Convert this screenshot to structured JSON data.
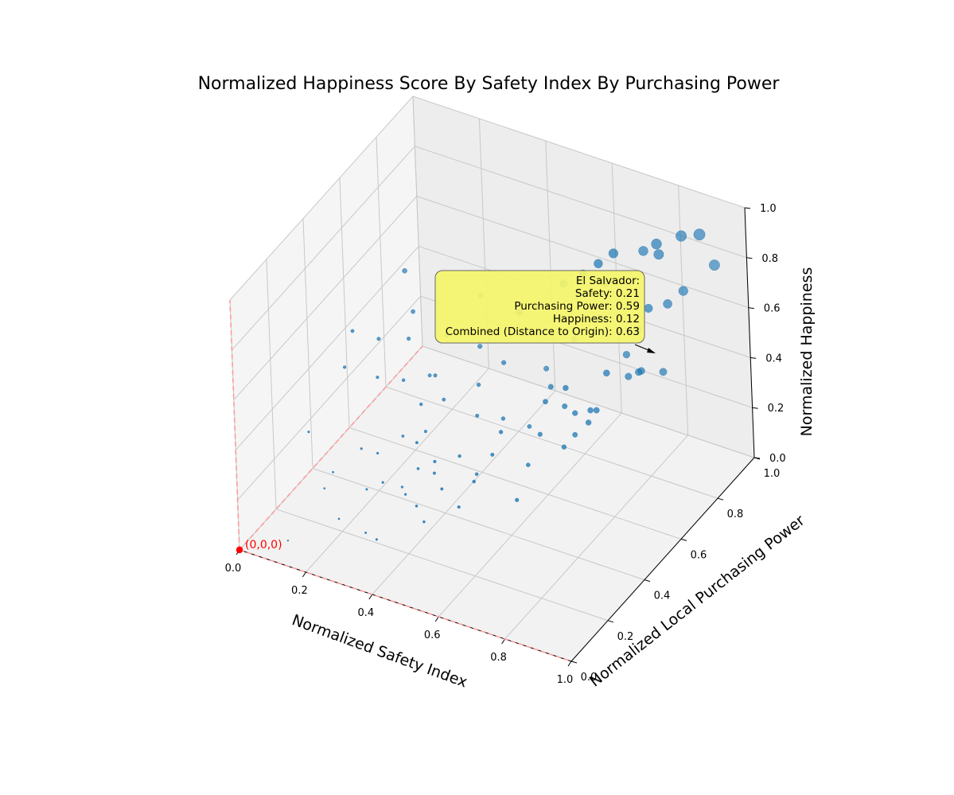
{
  "chart_data": {
    "type": "scatter",
    "title": "Normalized Happiness Score By Safety Index By Purchasing Power",
    "xlabel": "Normalized Safety Index",
    "ylabel": "Normalized Local Purchasing Power",
    "zlabel": "Normalized Happiness",
    "xlim": [
      0,
      1
    ],
    "ylim": [
      0,
      1
    ],
    "zlim": [
      0,
      1
    ],
    "x_ticks": [
      "0.0",
      "0.2",
      "0.4",
      "0.6",
      "0.8",
      "1.0"
    ],
    "y_ticks": [
      "0.0",
      "0.2",
      "0.4",
      "0.6",
      "0.8",
      "1.0"
    ],
    "z_ticks": [
      "0.0",
      "0.2",
      "0.4",
      "0.6",
      "0.8",
      "1.0"
    ],
    "grid": true,
    "point_color": "#1f77b4",
    "origin": {
      "label": "(0,0,0)",
      "color": "#ff0000"
    },
    "annotation": {
      "country": "El Salvador:",
      "lines": [
        "El Salvador:",
        "Safety: 0.21",
        "Purchasing Power: 0.59",
        "Happiness: 0.12",
        "Combined (Distance to Origin): 0.63"
      ],
      "point": {
        "x": 0.21,
        "y": 0.59,
        "z": 0.12
      },
      "box_color": "#f5f56a"
    },
    "points": [
      {
        "x": 0.94,
        "y": 0.86,
        "z": 0.98
      },
      {
        "x": 0.86,
        "y": 0.77,
        "z": 0.98
      },
      {
        "x": 0.89,
        "y": 0.85,
        "z": 0.96
      },
      {
        "x": 0.78,
        "y": 0.68,
        "z": 0.98
      },
      {
        "x": 0.86,
        "y": 0.78,
        "z": 0.93
      },
      {
        "x": 0.79,
        "y": 0.82,
        "z": 0.88
      },
      {
        "x": 0.75,
        "y": 0.65,
        "z": 0.95
      },
      {
        "x": 0.72,
        "y": 0.62,
        "z": 0.92
      },
      {
        "x": 0.93,
        "y": 0.95,
        "z": 0.78
      },
      {
        "x": 0.7,
        "y": 0.55,
        "z": 0.93
      },
      {
        "x": 0.75,
        "y": 0.68,
        "z": 0.85
      },
      {
        "x": 0.89,
        "y": 0.85,
        "z": 0.74
      },
      {
        "x": 0.84,
        "y": 0.75,
        "z": 0.73
      },
      {
        "x": 0.87,
        "y": 0.8,
        "z": 0.72
      },
      {
        "x": 0.62,
        "y": 0.45,
        "z": 0.86
      },
      {
        "x": 0.81,
        "y": 0.74,
        "z": 0.64
      },
      {
        "x": 0.84,
        "y": 0.7,
        "z": 0.52
      },
      {
        "x": 0.78,
        "y": 0.62,
        "z": 0.55
      },
      {
        "x": 0.75,
        "y": 0.78,
        "z": 0.48
      },
      {
        "x": 0.8,
        "y": 0.7,
        "z": 0.48
      },
      {
        "x": 0.82,
        "y": 0.72,
        "z": 0.49
      },
      {
        "x": 0.86,
        "y": 0.78,
        "z": 0.46
      },
      {
        "x": 0.78,
        "y": 0.56,
        "z": 0.45
      },
      {
        "x": 0.7,
        "y": 0.54,
        "z": 0.52
      },
      {
        "x": 0.66,
        "y": 0.5,
        "z": 0.48
      },
      {
        "x": 0.72,
        "y": 0.55,
        "z": 0.42
      },
      {
        "x": 0.75,
        "y": 0.58,
        "z": 0.42
      },
      {
        "x": 0.76,
        "y": 0.55,
        "z": 0.4
      },
      {
        "x": 0.62,
        "y": 0.6,
        "z": 0.44
      },
      {
        "x": 0.66,
        "y": 0.6,
        "z": 0.38
      },
      {
        "x": 0.64,
        "y": 0.5,
        "z": 0.34
      },
      {
        "x": 0.7,
        "y": 0.58,
        "z": 0.3
      },
      {
        "x": 0.7,
        "y": 0.52,
        "z": 0.3
      },
      {
        "x": 0.55,
        "y": 0.45,
        "z": 0.35
      },
      {
        "x": 0.55,
        "y": 0.4,
        "z": 0.3
      },
      {
        "x": 0.5,
        "y": 0.4,
        "z": 0.2
      },
      {
        "x": 0.45,
        "y": 0.4,
        "z": 0.25
      },
      {
        "x": 0.4,
        "y": 0.35,
        "z": 0.2
      },
      {
        "x": 0.45,
        "y": 0.3,
        "z": 0.2
      },
      {
        "x": 0.38,
        "y": 0.3,
        "z": 0.25
      },
      {
        "x": 0.42,
        "y": 0.32,
        "z": 0.28
      },
      {
        "x": 0.35,
        "y": 0.35,
        "z": 0.3
      },
      {
        "x": 0.3,
        "y": 0.25,
        "z": 0.2
      },
      {
        "x": 0.35,
        "y": 0.28,
        "z": 0.15
      },
      {
        "x": 0.4,
        "y": 0.25,
        "z": 0.15
      },
      {
        "x": 0.45,
        "y": 0.2,
        "z": 0.15
      },
      {
        "x": 0.5,
        "y": 0.3,
        "z": 0.15
      },
      {
        "x": 0.3,
        "y": 0.35,
        "z": 0.1
      },
      {
        "x": 0.2,
        "y": 0.4,
        "z": 0.15
      },
      {
        "x": 0.25,
        "y": 0.45,
        "z": 0.2
      },
      {
        "x": 0.32,
        "y": 0.45,
        "z": 0.25
      },
      {
        "x": 0.28,
        "y": 0.5,
        "z": 0.3
      },
      {
        "x": 0.2,
        "y": 0.55,
        "z": 0.32
      },
      {
        "x": 0.24,
        "y": 0.62,
        "z": 0.3
      },
      {
        "x": 0.15,
        "y": 0.7,
        "z": 0.45
      },
      {
        "x": 0.1,
        "y": 0.6,
        "z": 0.4
      },
      {
        "x": 0.05,
        "y": 0.55,
        "z": 0.45
      },
      {
        "x": 0.08,
        "y": 0.45,
        "z": 0.4
      },
      {
        "x": 0.15,
        "y": 0.5,
        "z": 0.35
      },
      {
        "x": 0.25,
        "y": 0.7,
        "z": 0.4
      },
      {
        "x": 0.35,
        "y": 0.7,
        "z": 0.4
      },
      {
        "x": 0.4,
        "y": 0.85,
        "z": 0.35
      },
      {
        "x": 0.1,
        "y": 0.75,
        "z": 0.55
      },
      {
        "x": 0.3,
        "y": 0.8,
        "z": 0.5
      },
      {
        "x": 0.12,
        "y": 0.3,
        "z": 0.12
      },
      {
        "x": 0.15,
        "y": 0.2,
        "z": 0.15
      },
      {
        "x": 0.22,
        "y": 0.15,
        "z": 0.1
      },
      {
        "x": 0.3,
        "y": 0.15,
        "z": 0.08
      },
      {
        "x": 0.35,
        "y": 0.12,
        "z": 0.1
      },
      {
        "x": 0.25,
        "y": 0.25,
        "z": 0.15
      },
      {
        "x": 0.18,
        "y": 0.35,
        "z": 0.2
      },
      {
        "x": 0.55,
        "y": 0.6,
        "z": 0.25
      },
      {
        "x": 0.6,
        "y": 0.5,
        "z": 0.2
      },
      {
        "x": 0.62,
        "y": 0.4,
        "z": 0.15
      },
      {
        "x": 0.5,
        "y": 0.55,
        "z": 0.3
      },
      {
        "x": 0.45,
        "y": 0.5,
        "z": 0.33
      },
      {
        "x": 0.55,
        "y": 0.7,
        "z": 0.4
      },
      {
        "x": 0.12,
        "y": 0.05,
        "z": 0.05
      },
      {
        "x": 0.05,
        "y": 0.3,
        "z": 0.25
      },
      {
        "x": 0.4,
        "y": 0.6,
        "z": 0.35
      },
      {
        "x": 0.35,
        "y": 0.5,
        "z": 0.35
      },
      {
        "x": 0.58,
        "y": 0.8,
        "z": 0.45
      },
      {
        "x": 0.65,
        "y": 0.82,
        "z": 0.55
      },
      {
        "x": 0.48,
        "y": 0.78,
        "z": 0.55
      },
      {
        "x": 0.45,
        "y": 0.65,
        "z": 0.42
      },
      {
        "x": 0.52,
        "y": 0.35,
        "z": 0.22
      },
      {
        "x": 0.28,
        "y": 0.58,
        "z": 0.35
      },
      {
        "x": 0.18,
        "y": 0.62,
        "z": 0.42
      }
    ]
  }
}
